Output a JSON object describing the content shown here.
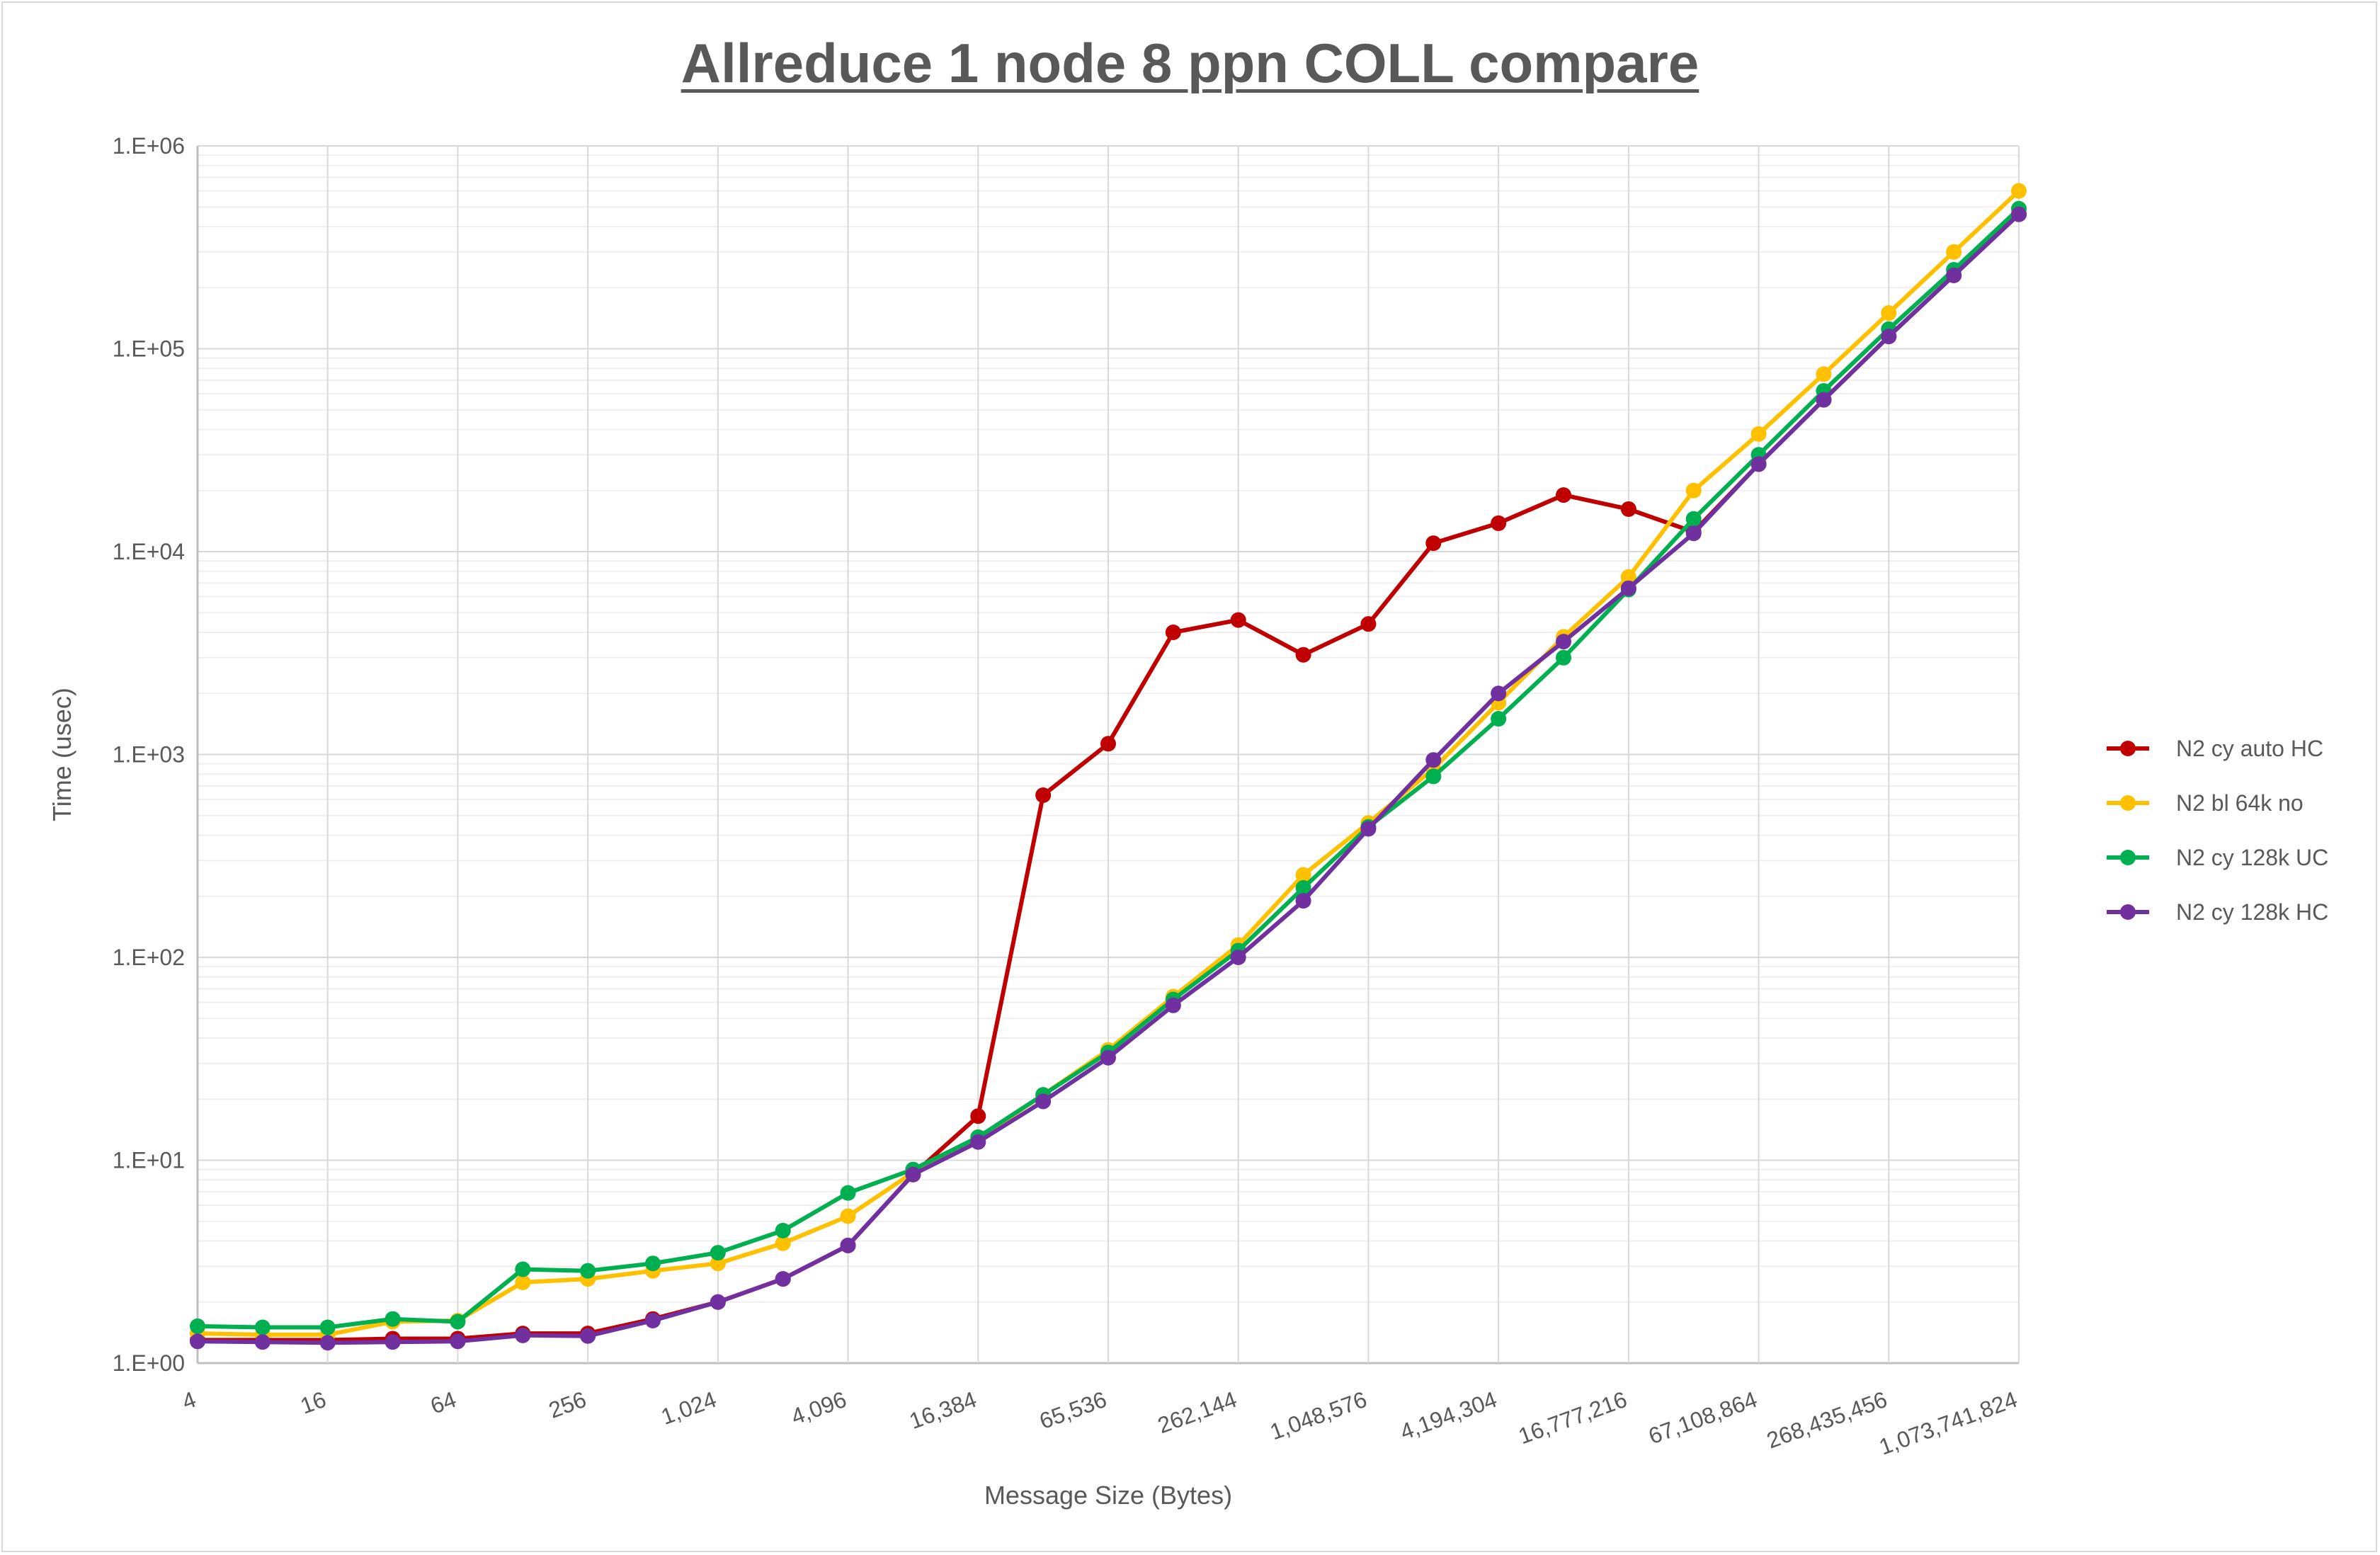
{
  "chart_data": {
    "type": "line",
    "title": "Allreduce 1 node 8 ppn COLL compare",
    "xlabel": "Message Size (Bytes)",
    "ylabel": "Time (usec)",
    "x_scale": "log2",
    "y_scale": "log10",
    "ylim": [
      1,
      1000000
    ],
    "y_tick_labels": [
      "1.E+00",
      "1.E+01",
      "1.E+02",
      "1.E+03",
      "1.E+04",
      "1.E+05",
      "1.E+06"
    ],
    "x_tick_labels": [
      "4",
      "16",
      "64",
      "256",
      "1,024",
      "4,096",
      "16,384",
      "65,536",
      "262,144",
      "1,048,576",
      "4,194,304",
      "16,777,216",
      "67,108,864",
      "268,435,456",
      "1,073,741,824"
    ],
    "grid": true,
    "legend_position": "right",
    "x": [
      4,
      8,
      16,
      32,
      64,
      128,
      256,
      512,
      1024,
      2048,
      4096,
      8192,
      16384,
      32768,
      65536,
      131072,
      262144,
      524288,
      1048576,
      2097152,
      4194304,
      8388608,
      16777216,
      33554432,
      67108864,
      134217728,
      268435456,
      536870912,
      1073741824
    ],
    "series": [
      {
        "name": "N2 cy auto HC",
        "color": "#c00000",
        "values": [
          1.3,
          1.3,
          1.3,
          1.32,
          1.32,
          1.4,
          1.4,
          1.65,
          2.0,
          2.6,
          3.8,
          8.5,
          16.5,
          630,
          1130,
          4000,
          4600,
          3100,
          4400,
          11000,
          13800,
          19000,
          16200,
          12500,
          27000,
          56000,
          115000,
          230000,
          460000
        ]
      },
      {
        "name": "N2 bl 64k no",
        "color": "#ffc000",
        "values": [
          1.4,
          1.38,
          1.38,
          1.6,
          1.62,
          2.5,
          2.6,
          2.85,
          3.1,
          3.9,
          5.3,
          8.7,
          12.8,
          21,
          35,
          64,
          115,
          255,
          460,
          850,
          1800,
          3800,
          7500,
          20000,
          38000,
          75000,
          150000,
          300000,
          600000
        ]
      },
      {
        "name": "N2 cy 128k UC",
        "color": "#00b050",
        "values": [
          1.52,
          1.5,
          1.5,
          1.65,
          1.6,
          2.9,
          2.85,
          3.1,
          3.5,
          4.5,
          6.9,
          9.0,
          13,
          21,
          34,
          62,
          108,
          220,
          440,
          780,
          1500,
          3000,
          6500,
          14500,
          30000,
          62000,
          125000,
          245000,
          490000
        ]
      },
      {
        "name": "N2 cy 128k HC",
        "color": "#7030a0",
        "values": [
          1.28,
          1.27,
          1.26,
          1.27,
          1.28,
          1.37,
          1.36,
          1.62,
          2.0,
          2.6,
          3.8,
          8.5,
          12.3,
          19.5,
          32,
          58,
          100,
          190,
          430,
          940,
          2000,
          3600,
          6600,
          12300,
          27000,
          56000,
          115000,
          230000,
          460000
        ]
      }
    ]
  }
}
